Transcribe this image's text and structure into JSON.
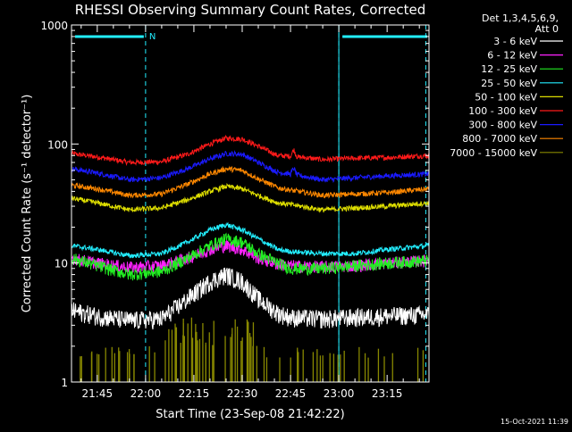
{
  "chart_data": {
    "type": "line",
    "title": "RHESSI Observing Summary Count Rates, Corrected",
    "xlabel": "Start Time (23-Sep-08 21:42:22)",
    "ylabel": "Corrected Count Rate (s⁻¹ detector⁻¹)",
    "yscale": "log",
    "ylim": [
      1,
      1000
    ],
    "y_ticks": [
      {
        "value": 1,
        "label": "1"
      },
      {
        "value": 10,
        "label": "10"
      },
      {
        "value": 100,
        "label": "100"
      },
      {
        "value": 1000,
        "label": "1000"
      }
    ],
    "xlim_minutes": [
      -8,
      103
    ],
    "x_ticks": [
      {
        "minutes": 0,
        "label": "21:45"
      },
      {
        "minutes": 15,
        "label": "22:00"
      },
      {
        "minutes": 30,
        "label": "22:15"
      },
      {
        "minutes": 45,
        "label": "22:30"
      },
      {
        "minutes": 60,
        "label": "22:45"
      },
      {
        "minutes": 75,
        "label": "23:00"
      },
      {
        "minutes": 90,
        "label": "23:15"
      }
    ],
    "legend_header": [
      "Det 1,3,4,5,6,9,",
      "Att 0"
    ],
    "legend_position": "right",
    "series": [
      {
        "name": "3 - 6 keV",
        "color": "#ffffff"
      },
      {
        "name": "6 - 12 keV",
        "color": "#ff22ff"
      },
      {
        "name": "12 - 25 keV",
        "color": "#22ee22"
      },
      {
        "name": "25 - 50 keV",
        "color": "#22eeff"
      },
      {
        "name": "50 - 100 keV",
        "color": "#dddd00"
      },
      {
        "name": "100 - 300 keV",
        "color": "#ff1a1a"
      },
      {
        "name": "300 - 800 keV",
        "color": "#1a1aff"
      },
      {
        "name": "800 - 7000 keV",
        "color": "#ff8800"
      },
      {
        "name": "7000 - 15000 keV",
        "color": "#888800"
      }
    ],
    "plotted_series": [
      {
        "legend_index": 5,
        "color": "#ff1a1a",
        "points": [
          [
            -8,
            83
          ],
          [
            0,
            78
          ],
          [
            10,
            70
          ],
          [
            20,
            71
          ],
          [
            28,
            82
          ],
          [
            35,
            100
          ],
          [
            40,
            112
          ],
          [
            45,
            110
          ],
          [
            50,
            96
          ],
          [
            56,
            80
          ],
          [
            60,
            79
          ],
          [
            61,
            90
          ],
          [
            62,
            78
          ],
          [
            70,
            74
          ],
          [
            80,
            76
          ],
          [
            90,
            77
          ],
          [
            103,
            80
          ]
        ]
      },
      {
        "legend_index": 6,
        "color": "#1a1aff",
        "points": [
          [
            -8,
            62
          ],
          [
            0,
            57
          ],
          [
            10,
            50
          ],
          [
            20,
            52
          ],
          [
            28,
            62
          ],
          [
            35,
            75
          ],
          [
            40,
            83
          ],
          [
            45,
            82
          ],
          [
            50,
            70
          ],
          [
            56,
            58
          ],
          [
            60,
            56
          ],
          [
            61,
            63
          ],
          [
            62,
            55
          ],
          [
            70,
            50
          ],
          [
            80,
            52
          ],
          [
            90,
            54
          ],
          [
            103,
            56
          ]
        ]
      },
      {
        "legend_index": 7,
        "color": "#ff8800",
        "points": [
          [
            -8,
            45
          ],
          [
            0,
            42
          ],
          [
            10,
            37
          ],
          [
            20,
            38
          ],
          [
            28,
            46
          ],
          [
            35,
            56
          ],
          [
            40,
            62
          ],
          [
            45,
            60
          ],
          [
            50,
            51
          ],
          [
            56,
            43
          ],
          [
            60,
            41
          ],
          [
            70,
            37
          ],
          [
            80,
            38
          ],
          [
            90,
            39
          ],
          [
            103,
            42
          ]
        ]
      },
      {
        "legend_index": 4,
        "color": "#dddd00",
        "points": [
          [
            -8,
            35
          ],
          [
            0,
            32
          ],
          [
            10,
            28
          ],
          [
            20,
            29
          ],
          [
            28,
            34
          ],
          [
            35,
            40
          ],
          [
            40,
            44
          ],
          [
            45,
            42
          ],
          [
            50,
            37
          ],
          [
            56,
            32
          ],
          [
            60,
            31
          ],
          [
            70,
            28
          ],
          [
            80,
            29
          ],
          [
            90,
            30
          ],
          [
            103,
            32
          ]
        ]
      },
      {
        "legend_index": 3,
        "color": "#22eeff",
        "points": [
          [
            -8,
            14
          ],
          [
            0,
            13
          ],
          [
            10,
            11.5
          ],
          [
            20,
            12
          ],
          [
            28,
            15
          ],
          [
            35,
            19
          ],
          [
            40,
            21
          ],
          [
            45,
            19
          ],
          [
            50,
            16
          ],
          [
            56,
            13
          ],
          [
            60,
            12.5
          ],
          [
            70,
            12
          ],
          [
            80,
            12
          ],
          [
            90,
            13
          ],
          [
            103,
            14
          ]
        ]
      },
      {
        "legend_index": 1,
        "color": "#ff22ff",
        "points": [
          [
            -8,
            11
          ],
          [
            0,
            10
          ],
          [
            10,
            9.2
          ],
          [
            20,
            9.5
          ],
          [
            28,
            11
          ],
          [
            35,
            13
          ],
          [
            40,
            14
          ],
          [
            45,
            13
          ],
          [
            50,
            11
          ],
          [
            56,
            9.8
          ],
          [
            60,
            9.5
          ],
          [
            70,
            9.3
          ],
          [
            80,
            9.5
          ],
          [
            90,
            10
          ],
          [
            103,
            10.5
          ]
        ]
      },
      {
        "legend_index": 2,
        "color": "#22ee22",
        "points": [
          [
            -8,
            11
          ],
          [
            0,
            9.5
          ],
          [
            10,
            8
          ],
          [
            20,
            8.5
          ],
          [
            28,
            11
          ],
          [
            35,
            14
          ],
          [
            40,
            16
          ],
          [
            45,
            15
          ],
          [
            50,
            12
          ],
          [
            56,
            10
          ],
          [
            60,
            9
          ],
          [
            70,
            9
          ],
          [
            80,
            9.5
          ],
          [
            90,
            10
          ],
          [
            103,
            10.5
          ]
        ]
      },
      {
        "legend_index": 0,
        "color": "#ffffff",
        "points": [
          [
            -8,
            4
          ],
          [
            0,
            3.6
          ],
          [
            10,
            3.3
          ],
          [
            20,
            3.4
          ],
          [
            28,
            5
          ],
          [
            35,
            7
          ],
          [
            40,
            8
          ],
          [
            45,
            7
          ],
          [
            50,
            5
          ],
          [
            56,
            3.8
          ],
          [
            60,
            3.5
          ],
          [
            70,
            3.4
          ],
          [
            80,
            3.5
          ],
          [
            90,
            3.6
          ],
          [
            103,
            3.7
          ]
        ]
      }
    ],
    "annotations": {
      "attenuator_segments": [
        [
          -8,
          15
        ],
        [
          75,
          103
        ]
      ],
      "attenuator_label": "N",
      "dashed_markers_minutes": [
        15,
        75,
        102
      ],
      "solid_markers_minutes": [
        -8,
        75
      ]
    },
    "timestamp": "15-Oct-2021 11:39"
  }
}
